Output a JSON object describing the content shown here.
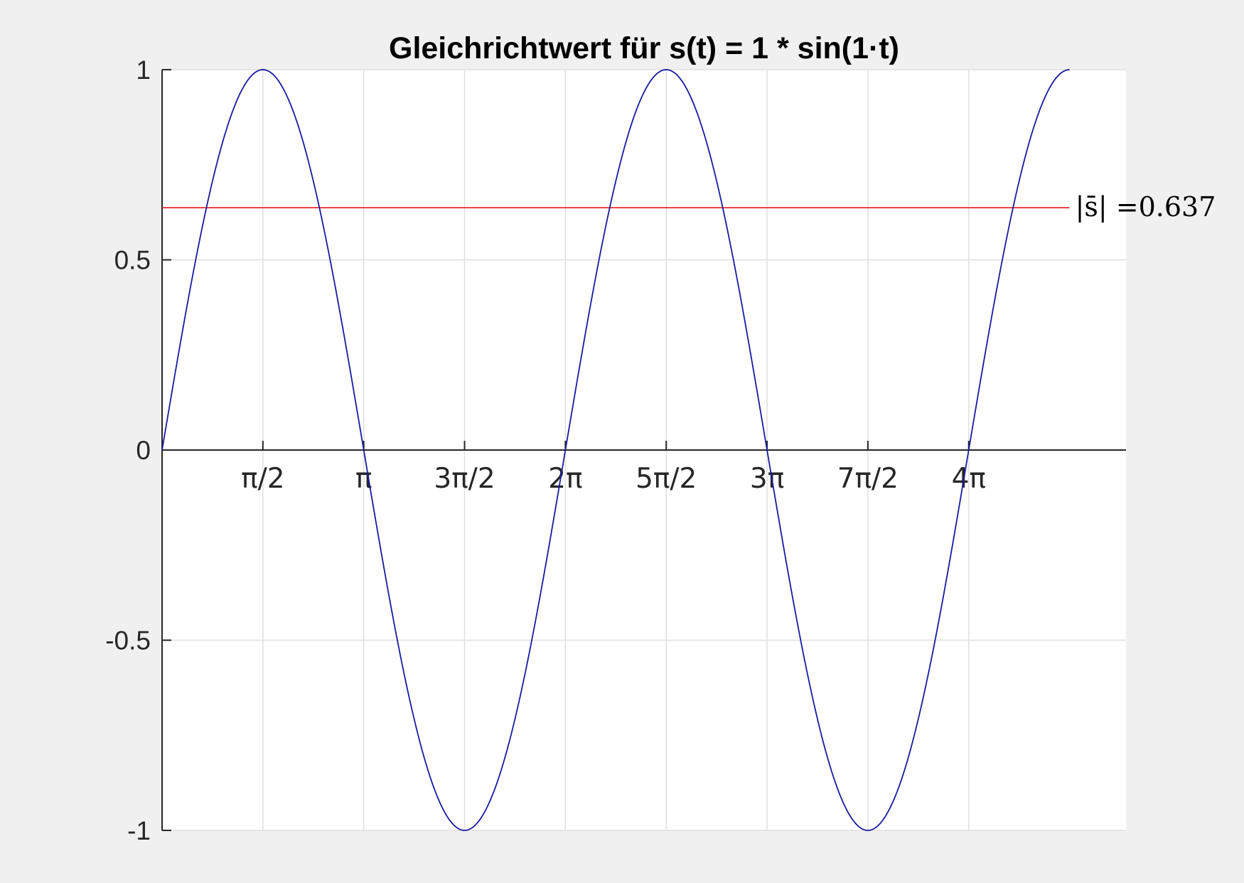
{
  "chart_data": {
    "type": "line",
    "title": "Gleichrichtwert für s(t) = 1 * sin(1·t)",
    "xlabel": "",
    "ylabel": "",
    "xlim_pi": [
      0,
      4.78
    ],
    "ylim": [
      -1,
      1
    ],
    "grid": true,
    "x_axis_position": "origin",
    "y_ticks": [
      {
        "value": 1,
        "label": "1"
      },
      {
        "value": 0.5,
        "label": "0.5"
      },
      {
        "value": 0,
        "label": "0"
      },
      {
        "value": -0.5,
        "label": "-0.5"
      },
      {
        "value": -1,
        "label": "-1"
      }
    ],
    "x_ticks": [
      {
        "value_pi": 0.5,
        "label": "π/2"
      },
      {
        "value_pi": 1,
        "label": "π"
      },
      {
        "value_pi": 1.5,
        "label": "3π/2"
      },
      {
        "value_pi": 2,
        "label": "2π"
      },
      {
        "value_pi": 2.5,
        "label": "5π/2"
      },
      {
        "value_pi": 3,
        "label": "3π"
      },
      {
        "value_pi": 3.5,
        "label": "7π/2"
      },
      {
        "value_pi": 4,
        "label": "4π"
      }
    ],
    "series": [
      {
        "function": "sin",
        "amplitude": 1,
        "frequency": 1,
        "t_range_pi": [
          0,
          4.5
        ],
        "color": "#1a1aa0"
      }
    ],
    "reference_line": {
      "value": 0.637,
      "color": "#e41a1c",
      "label": "|s̄| =0.637"
    },
    "colors": {
      "figure_background": "#f0f0f0",
      "axes_background": "#ffffff",
      "grid": "#dfdfdf",
      "axis": "#262626"
    }
  }
}
